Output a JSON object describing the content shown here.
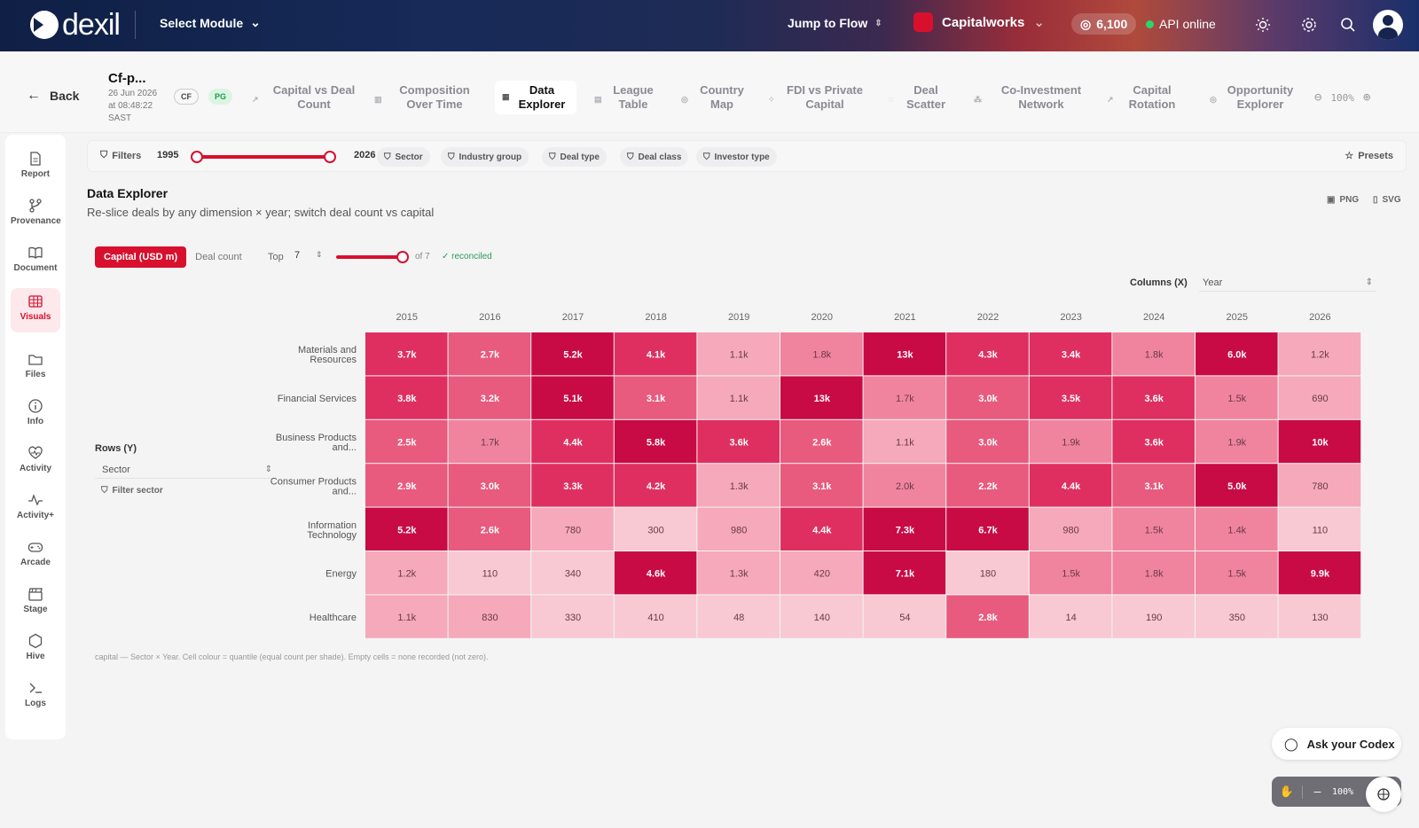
{
  "app": {
    "brand": "dexil",
    "module_label": "Select Module",
    "jump_label": "Jump to Flow",
    "org_name": "Capitalworks",
    "credits": "6,100",
    "api_status": "API online"
  },
  "doc": {
    "title": "Cf-p...",
    "date": "26 Jun 2026 at 08:48:22 SAST",
    "badge_cf": "CF",
    "badge_pg": "PG",
    "back_label": "Back"
  },
  "tabs": [
    {
      "label": "Capital vs Deal Count",
      "icon": "scatter-icon"
    },
    {
      "label": "Composition Over Time",
      "icon": "bars-icon"
    },
    {
      "label": "Data Explorer",
      "icon": "grid-icon",
      "active": true
    },
    {
      "label": "League Table",
      "icon": "bars-icon"
    },
    {
      "label": "Country Map",
      "icon": "globe-icon"
    },
    {
      "label": "FDI vs Private Capital",
      "icon": "scatter-icon"
    },
    {
      "label": "Deal Scatter",
      "icon": "dot-icon"
    },
    {
      "label": "Co-Investment Network",
      "icon": "network-icon"
    },
    {
      "label": "Capital Rotation",
      "icon": "trend-icon"
    },
    {
      "label": "Opportunity Explorer",
      "icon": "target-icon"
    }
  ],
  "zoom_label": "100%",
  "rail": [
    {
      "label": "Report",
      "icon": "report-icon"
    },
    {
      "label": "Provenance",
      "icon": "branch-icon"
    },
    {
      "label": "Document",
      "icon": "book-icon"
    },
    {
      "label": "Visuals",
      "icon": "grid-icon",
      "active": true
    },
    {
      "label": "Files",
      "icon": "folder-icon"
    },
    {
      "label": "Info",
      "icon": "info-icon"
    },
    {
      "label": "Activity",
      "icon": "heart-icon"
    },
    {
      "label": "Activity+",
      "icon": "pulse-icon"
    },
    {
      "label": "Arcade",
      "icon": "gamepad-icon"
    },
    {
      "label": "Stage",
      "icon": "clapper-icon"
    },
    {
      "label": "Hive",
      "icon": "hexagon-icon"
    },
    {
      "label": "Logs",
      "icon": "terminal-icon"
    }
  ],
  "filters": {
    "label": "Filters",
    "year_from": "1995",
    "year_to": "2026",
    "chips": [
      "Sector",
      "Industry group",
      "Deal type",
      "Deal class",
      "Investor type"
    ],
    "presets": "Presets"
  },
  "panel": {
    "title": "Data Explorer",
    "subtitle": "Re-slice deals by any dimension × year; switch deal count vs capital",
    "export_png": "PNG",
    "export_svg": "SVG",
    "metric_on": "Capital (USD m)",
    "metric_off": "Deal count",
    "top_label": "Top",
    "top_value": "7",
    "top_of": "of 7",
    "reconciled": "✓ reconciled",
    "columns_label": "Columns (X)",
    "columns_value": "Year",
    "rows_label": "Rows (Y)",
    "rows_value": "Sector",
    "rows_filter": "Filter sector",
    "caption": "capital — Sector × Year. Cell colour = quantile (equal count per shade). Empty cells = none recorded (not zero)."
  },
  "chart_data": {
    "type": "heatmap",
    "x": [
      "2015",
      "2016",
      "2017",
      "2018",
      "2019",
      "2020",
      "2021",
      "2022",
      "2023",
      "2024",
      "2025",
      "2026"
    ],
    "y": [
      "Materials and Resources",
      "Financial Services",
      "Business Products and...",
      "Consumer Products and...",
      "Information Technology",
      "Energy",
      "Healthcare"
    ],
    "values": [
      [
        3700,
        2700,
        5200,
        4100,
        1100,
        1800,
        13000,
        4300,
        3400,
        1800,
        6000,
        1200
      ],
      [
        3800,
        3200,
        5100,
        3100,
        1100,
        13000,
        1700,
        3000,
        3500,
        3600,
        1500,
        690
      ],
      [
        2500,
        1700,
        4400,
        5800,
        3600,
        2600,
        1100,
        3000,
        1900,
        3600,
        1900,
        10000
      ],
      [
        2900,
        3000,
        3300,
        4200,
        1300,
        3100,
        2000,
        2200,
        4400,
        3100,
        5000,
        780
      ],
      [
        5200,
        2600,
        780,
        300,
        980,
        4400,
        7300,
        6700,
        980,
        1500,
        1400,
        110
      ],
      [
        1200,
        110,
        340,
        4600,
        1300,
        420,
        7100,
        180,
        1500,
        1800,
        1500,
        9900
      ],
      [
        1100,
        830,
        330,
        410,
        48,
        140,
        54,
        2800,
        14,
        190,
        350,
        130
      ]
    ],
    "labels": [
      [
        "3.7k",
        "2.7k",
        "5.2k",
        "4.1k",
        "1.1k",
        "1.8k",
        "13k",
        "4.3k",
        "3.4k",
        "1.8k",
        "6.0k",
        "1.2k"
      ],
      [
        "3.8k",
        "3.2k",
        "5.1k",
        "3.1k",
        "1.1k",
        "13k",
        "1.7k",
        "3.0k",
        "3.5k",
        "3.6k",
        "1.5k",
        "690"
      ],
      [
        "2.5k",
        "1.7k",
        "4.4k",
        "5.8k",
        "3.6k",
        "2.6k",
        "1.1k",
        "3.0k",
        "1.9k",
        "3.6k",
        "1.9k",
        "10k"
      ],
      [
        "2.9k",
        "3.0k",
        "3.3k",
        "4.2k",
        "1.3k",
        "3.1k",
        "2.0k",
        "2.2k",
        "4.4k",
        "3.1k",
        "5.0k",
        "780"
      ],
      [
        "5.2k",
        "2.6k",
        "780",
        "300",
        "980",
        "4.4k",
        "7.3k",
        "6.7k",
        "980",
        "1.5k",
        "1.4k",
        "110"
      ],
      [
        "1.2k",
        "110",
        "340",
        "4.6k",
        "1.3k",
        "420",
        "7.1k",
        "180",
        "1.5k",
        "1.8k",
        "1.5k",
        "9.9k"
      ],
      [
        "1.1k",
        "830",
        "330",
        "410",
        "48",
        "140",
        "54",
        "2.8k",
        "14",
        "190",
        "350",
        "130"
      ]
    ],
    "palette": [
      "#f8c9d3",
      "#f5a9ba",
      "#f0849e",
      "#e85a7e",
      "#df2f60",
      "#c80a45"
    ],
    "grid": false
  },
  "assistant": {
    "ask_label": "Ask your Codex",
    "zoom": "100%"
  }
}
